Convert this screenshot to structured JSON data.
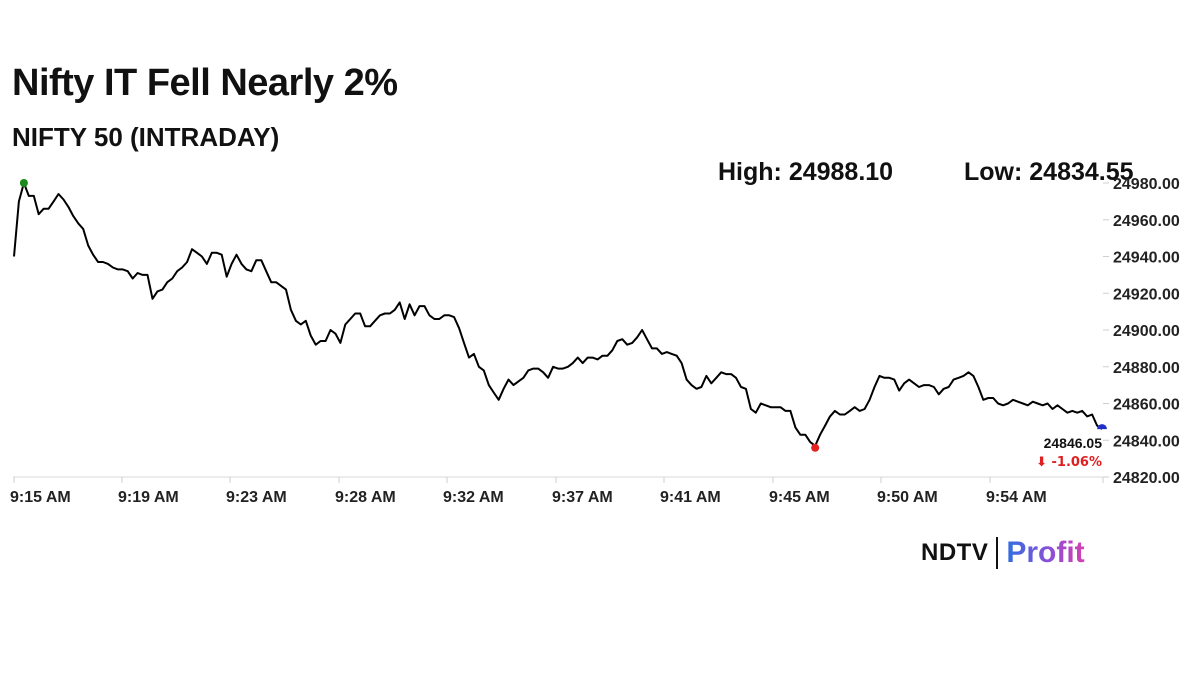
{
  "header": {
    "title": "Nifty IT Fell Nearly 2%",
    "subtitle": "NIFTY 50 (INTRADAY)",
    "high_text": "High: 24988.10",
    "low_text": "Low: 24834.55"
  },
  "chart_data": {
    "type": "line",
    "title": "Nifty IT Fell Nearly 2%",
    "subtitle": "NIFTY 50 (INTRADAY)",
    "xlabel": "",
    "ylabel": "",
    "x_tick_labels": [
      "9:15 AM",
      "9:19 AM",
      "9:23 AM",
      "9:28 AM",
      "9:32 AM",
      "9:37 AM",
      "9:41 AM",
      "9:45 AM",
      "9:50 AM",
      "9:54 AM"
    ],
    "y_tick_labels": [
      "24820.00",
      "24840.00",
      "24860.00",
      "24880.00",
      "24900.00",
      "24920.00",
      "24940.00",
      "24960.00",
      "24980.00"
    ],
    "y_ticks": [
      24820,
      24840,
      24860,
      24880,
      24900,
      24920,
      24940,
      24960,
      24980
    ],
    "ylim": [
      24820,
      24980
    ],
    "y_axis_position": "right",
    "grid": false,
    "values": [
      24940,
      24970,
      24980,
      24973,
      24973,
      24963,
      24966,
      24966,
      24970,
      24974,
      24971,
      24967,
      24962,
      24958,
      24955,
      24946,
      24941,
      24937,
      24937,
      24936,
      24934,
      24933,
      24933,
      24932,
      24928,
      24931,
      24930,
      24930,
      24917,
      24921,
      24922,
      24926,
      24928,
      24932,
      24934,
      24937,
      24944,
      24942,
      24940,
      24936,
      24942,
      24942,
      24941,
      24929,
      24936,
      24941,
      24936,
      24933,
      24932,
      24938,
      24938,
      24932,
      24926,
      24926,
      24924,
      24922,
      24911,
      24905,
      24903,
      24905,
      24897,
      24892,
      24894,
      24894,
      24900,
      24898,
      24893,
      24903,
      24906,
      24909,
      24909,
      24902,
      24902,
      24905,
      24908,
      24909,
      24909,
      24911,
      24915,
      24906,
      24914,
      24908,
      24913,
      24913,
      24908,
      24906,
      24906,
      24908,
      24908,
      24907,
      24901,
      24893,
      24885,
      24887,
      24880,
      24878,
      24870,
      24866,
      24862,
      24868,
      24873,
      24870,
      24872,
      24874,
      24878,
      24879,
      24879,
      24877,
      24874,
      24880,
      24879,
      24879,
      24880,
      24882,
      24885,
      24882,
      24885,
      24885,
      24884,
      24886,
      24886,
      24889,
      24894,
      24895,
      24892,
      24893,
      24896,
      24900,
      24895,
      24890,
      24890,
      24887,
      24888,
      24887,
      24886,
      24882,
      24873,
      24870,
      24868,
      24869,
      24875,
      24871,
      24874,
      24877,
      24876,
      24876,
      24874,
      24869,
      24868,
      24857,
      24855,
      24860,
      24859,
      24858,
      24858,
      24858,
      24856,
      24856,
      24847,
      24843,
      24843,
      24839,
      24837,
      24843,
      24848,
      24853,
      24856,
      24854,
      24854,
      24856,
      24858,
      24856,
      24857,
      24862,
      24869,
      24875,
      24874,
      24874,
      24873,
      24867,
      24871,
      24873,
      24871,
      24869,
      24870,
      24870,
      24869,
      24865,
      24868,
      24869,
      24873,
      24874,
      24875,
      24877,
      24875,
      24869,
      24862,
      24863,
      24863,
      24860,
      24859,
      24860,
      24862,
      24861,
      24860,
      24859,
      24861,
      24860,
      24859,
      24860,
      24857,
      24859,
      24857,
      24855,
      24856,
      24855,
      24856,
      24853,
      24854,
      24848,
      24846.05
    ],
    "high": {
      "label": "High: 24988.10",
      "value": 24988.1,
      "marker_color": "#1a8a1a"
    },
    "low": {
      "label": "Low: 24834.55",
      "value": 24834.55,
      "marker_color": "#e32222"
    },
    "last": {
      "value_text": "24846.05",
      "change_text": "⬇ -1.06%",
      "marker_color": "#1f2fc8",
      "change_color": "#e02020"
    },
    "line_color": "#000000"
  },
  "branding": {
    "ndtv": "NDTV",
    "profit": "Profit"
  }
}
